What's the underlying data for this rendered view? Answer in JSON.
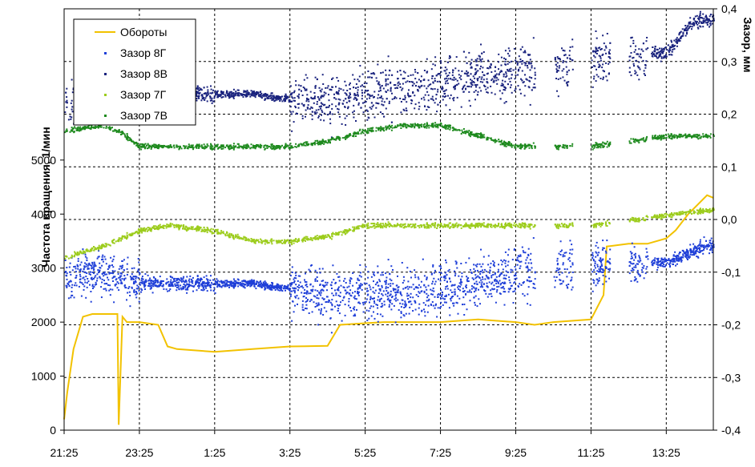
{
  "chart_data": {
    "type": "scatter",
    "xlabel": "",
    "ylabel_left": "Частота вращения, 1/мин",
    "ylabel_right": "Зазор, мм",
    "x_ticks": [
      "21:25",
      "23:25",
      "1:25",
      "3:25",
      "5:25",
      "7:25",
      "9:25",
      "11:25",
      "13:25"
    ],
    "x_range": [
      "21:25",
      "14:40"
    ],
    "left_ticks": [
      "0",
      "1000",
      "2000",
      "3000",
      "4000",
      "5000"
    ],
    "right_ticks": [
      "0,4",
      "0,3",
      "0,2",
      "0,1",
      "0,0",
      "-0,1",
      "-0,2",
      "-0,3",
      "-0,4"
    ],
    "ylim_left": [
      0,
      7800
    ],
    "ylim_right": [
      -0.4,
      0.4
    ],
    "grid": true,
    "legend_position": "top-left",
    "series": [
      {
        "name": "Обороты",
        "axis": "left",
        "style": "line",
        "color": "#f2c200",
        "x": [
          "21:25",
          "21:30",
          "21:40",
          "21:55",
          "22:10",
          "22:25",
          "22:40",
          "22:50",
          "22:52",
          "22:58",
          "23:05",
          "23:25",
          "23:55",
          "24:10",
          "24:25",
          "1:25",
          "2:25",
          "3:25",
          "4:25",
          "4:45",
          "5:25",
          "5:55",
          "6:25",
          "7:25",
          "8:25",
          "9:25",
          "9:55",
          "10:25",
          "11:25",
          "11:45",
          "11:50",
          "12:25",
          "12:55",
          "13:25",
          "13:40",
          "14:00",
          "14:30",
          "14:40"
        ],
        "values": [
          200,
          700,
          1500,
          2100,
          2150,
          2150,
          2150,
          2150,
          100,
          2100,
          2000,
          2000,
          1950,
          1550,
          1500,
          1450,
          1500,
          1550,
          1560,
          1950,
          1980,
          2000,
          2000,
          2000,
          2050,
          2000,
          1950,
          2000,
          2050,
          2500,
          3400,
          3450,
          3450,
          3550,
          3700,
          4000,
          4350,
          4300
        ]
      },
      {
        "name": "Зазор 8Г",
        "axis": "right",
        "style": "points",
        "color": "#1f3fd8",
        "x": [
          "21:25",
          "22:25",
          "23:25",
          "1:25",
          "2:25",
          "3:25",
          "4:25",
          "5:25",
          "6:25",
          "7:25",
          "8:25",
          "9:25",
          "9:55",
          "11:55",
          "12:25",
          "13:25",
          "14:25",
          "14:40"
        ],
        "values": [
          -0.11,
          -0.1,
          -0.12,
          -0.12,
          -0.12,
          -0.13,
          -0.14,
          -0.14,
          -0.14,
          -0.13,
          -0.12,
          -0.1,
          -0.1,
          -0.08,
          -0.08,
          -0.08,
          -0.05,
          -0.05
        ]
      },
      {
        "name": "Зазор 8В",
        "axis": "right",
        "style": "points",
        "color": "#1a237e",
        "x": [
          "21:25",
          "22:25",
          "23:25",
          "1:25",
          "2:25",
          "3:25",
          "4:25",
          "5:25",
          "6:25",
          "7:25",
          "8:25",
          "9:25",
          "9:55",
          "11:55",
          "12:25",
          "13:25",
          "14:10",
          "14:40"
        ],
        "values": [
          0.23,
          0.23,
          0.24,
          0.24,
          0.24,
          0.23,
          0.23,
          0.24,
          0.25,
          0.26,
          0.27,
          0.28,
          0.28,
          0.31,
          0.31,
          0.32,
          0.38,
          0.38
        ]
      },
      {
        "name": "Зазор 7Г",
        "axis": "right",
        "style": "points",
        "color": "#9ccc1c",
        "x": [
          "21:25",
          "22:25",
          "23:25",
          "24:10",
          "1:25",
          "2:25",
          "3:25",
          "4:25",
          "5:25",
          "6:25",
          "7:25",
          "8:25",
          "9:25",
          "9:55",
          "11:25",
          "12:25",
          "13:25",
          "14:40"
        ],
        "values": [
          -0.07,
          -0.05,
          -0.02,
          -0.01,
          -0.02,
          -0.04,
          -0.04,
          -0.03,
          -0.01,
          -0.01,
          -0.01,
          -0.01,
          -0.01,
          -0.01,
          -0.01,
          0.0,
          0.01,
          0.02
        ]
      },
      {
        "name": "Зазор 7В",
        "axis": "right",
        "style": "points",
        "color": "#1e8a1e",
        "x": [
          "21:25",
          "22:25",
          "22:50",
          "23:25",
          "24:25",
          "1:25",
          "2:25",
          "3:25",
          "4:25",
          "5:25",
          "6:25",
          "7:25",
          "8:25",
          "9:25",
          "9:55",
          "11:25",
          "12:25",
          "13:25",
          "14:40"
        ],
        "values": [
          0.17,
          0.18,
          0.17,
          0.14,
          0.14,
          0.14,
          0.14,
          0.14,
          0.15,
          0.17,
          0.18,
          0.18,
          0.16,
          0.14,
          0.14,
          0.14,
          0.15,
          0.16,
          0.16
        ]
      }
    ]
  }
}
